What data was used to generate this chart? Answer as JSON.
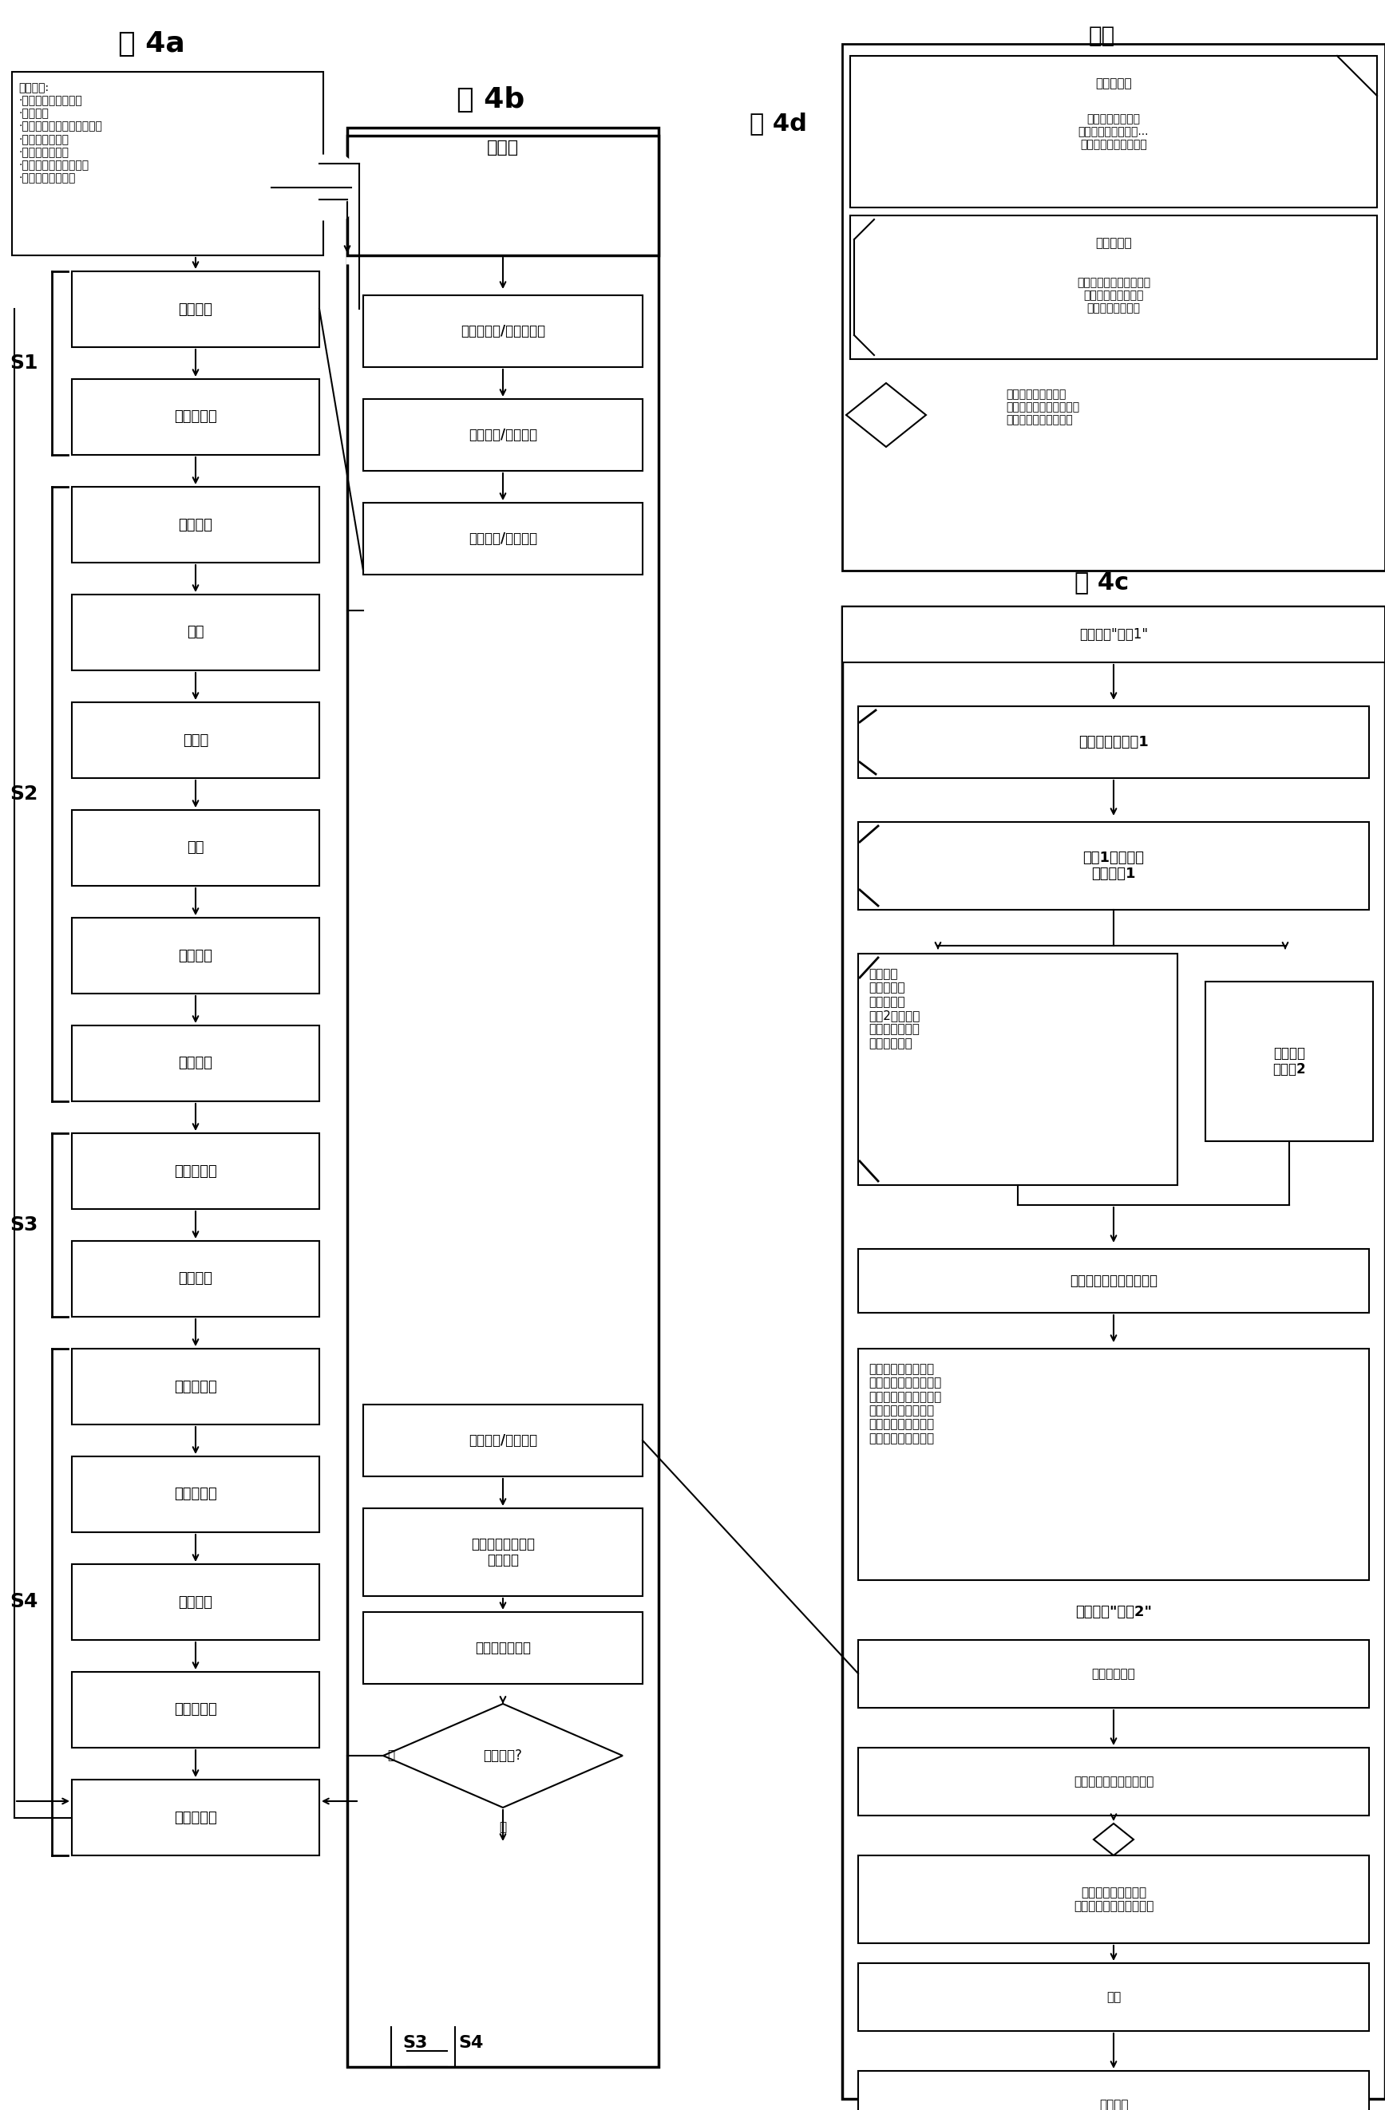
{
  "bg_color": "#ffffff",
  "fig4a_title": "图 4a",
  "fig4b_title": "图 4b",
  "fig4c_title": "图 4c",
  "fig4d_title": "图 4d",
  "fig4a_start_text": "起始状态:\n·将工具安装到机器中\n·工具断开\n·推断器在后面（脱模位置）\n·核心在脱模位置\n·喷注组件在后面\n·螺杆在后面，汽缸为空\n·机器人在安全位置",
  "fig4a_steps": [
    "工具闭合",
    "闭合力施加",
    "组件前进",
    "喷注",
    "后压力",
    "塑化",
    "螺杆后退",
    "组件返回",
    "闭合力撤销",
    "工具断开",
    "推料器前进",
    "机器人移入",
    "部件转换",
    "推料器返回",
    "机器人移出"
  ],
  "fig4b_top_text": "加料斗",
  "fig4b_steps": [
    "推料器前进/推料器返回",
    "核心移入/核心移出",
    "工具闭合/工具断开"
  ],
  "fig4b_bottom_steps": [
    "组件前进/组件返回",
    "螺杆前进（喷出）\n准备材料",
    "塑化，准备材料"
  ],
  "fig4b_diamond": "材料正常?",
  "fig4d_legend_title": "解释",
  "fig4d_box1_title": "功能测试：",
  "fig4d_box1_text": "可运动性、冲突、\n终端开关、运动方向...\n正常安装以及功能正常",
  "fig4d_box2_title": "传授功能：",
  "fig4d_box2_text": "控制装置的学习，位置，\n控制时间，信号逻辑\n连接（终端开关）",
  "fig4d_diamond_text": "设置自动流程的起始\n条件，例如是组件只需要\n在第一个周期时前进。",
  "fig4c_legend_title": "传授模式\"序列1\"",
  "fig4c_step1": "工具闭合到位置1",
  "fig4c_step2": "核心1移入直到\n达到开关1",
  "fig4c_left_box": "只要压住\n按键（传授\n控制时间）\n核心2就稳入，\n压力和数量通过\n操作字段输入",
  "fig4c_right_box": "工具闭合\n到位置2",
  "fig4c_step3": "工具一直闭合到最终位置",
  "fig4c_step4": "只要压住按键就施加\n闭合力，控制时间按键\n闭合力的比例，闭合力\n可以通过时间传授，\n通过在显示屏上显示\n该力的实际值来支持",
  "fig4c_seq2_title": "传授模式\"序列2\"",
  "fig4c_s2_steps": [
    "喷注组件前进",
    "螺杆前进（学习路经点）",
    "后压力（学习时间，\n通过控制装置调节压力）",
    "塑化",
    "螺杆返回"
  ]
}
